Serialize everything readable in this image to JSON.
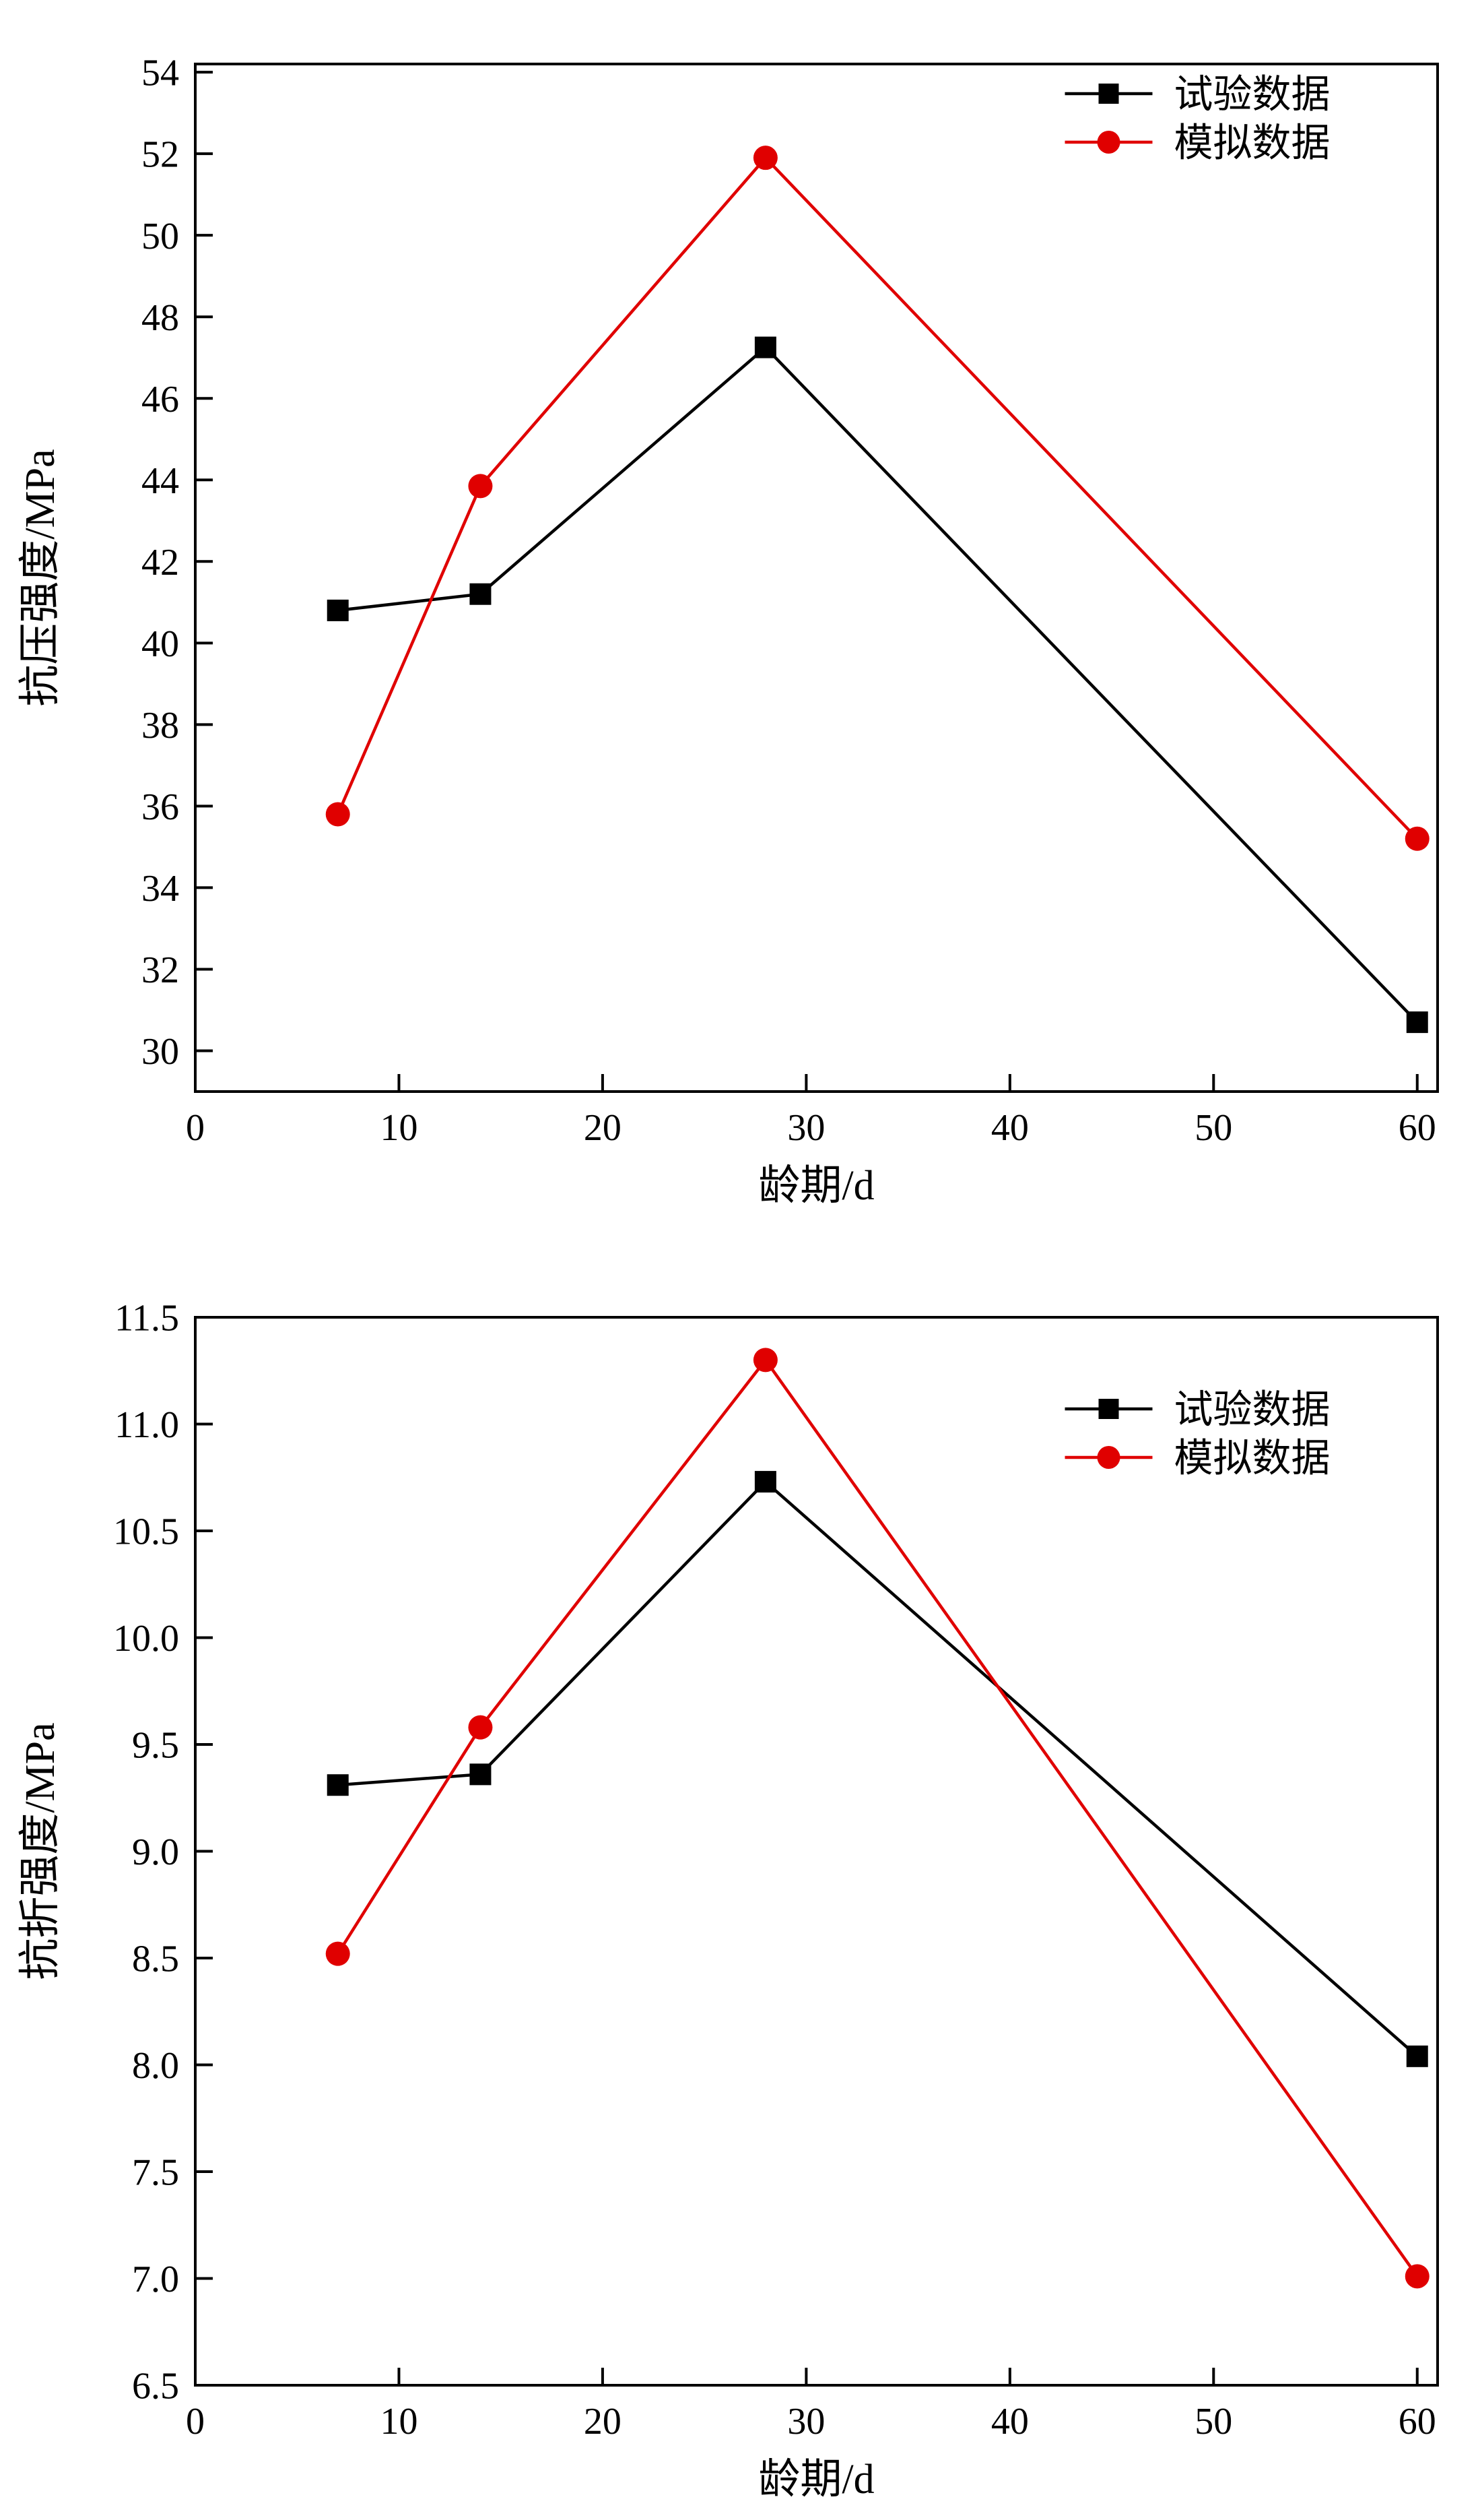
{
  "page": {
    "background": "#ffffff"
  },
  "chart_data": [
    {
      "type": "line",
      "title": "",
      "xlabel": "龄期/d",
      "ylabel": "抗压强度/MPa",
      "xlim": [
        0,
        61
      ],
      "ylim": [
        29,
        54.2
      ],
      "xticks": [
        "0",
        "10",
        "20",
        "30",
        "40",
        "50",
        "60"
      ],
      "yticks": [
        "30",
        "32",
        "34",
        "36",
        "38",
        "40",
        "42",
        "44",
        "46",
        "48",
        "50",
        "52",
        "54"
      ],
      "x": [
        7,
        14,
        28,
        60
      ],
      "series": [
        {
          "name": "试验数据",
          "marker": "square",
          "color": "#000000",
          "values": [
            40.8,
            41.2,
            47.25,
            30.7
          ]
        },
        {
          "name": "模拟数据",
          "marker": "circle",
          "color": "#e00000",
          "values": [
            35.8,
            43.85,
            51.9,
            35.2
          ]
        }
      ],
      "legend": [
        "试验数据",
        "模拟数据"
      ],
      "legend_position": "top-right",
      "grid": false
    },
    {
      "type": "line",
      "title": "",
      "xlabel": "龄期/d",
      "ylabel": "抗折强度/MPa",
      "xlim": [
        0,
        61
      ],
      "ylim": [
        6.5,
        11.5
      ],
      "xticks": [
        "0",
        "10",
        "20",
        "30",
        "40",
        "50",
        "60"
      ],
      "yticks": [
        "6.5",
        "7.0",
        "7.5",
        "8.0",
        "8.5",
        "9.0",
        "9.5",
        "10.0",
        "10.5",
        "11.0",
        "11.5"
      ],
      "x": [
        7,
        14,
        28,
        60
      ],
      "series": [
        {
          "name": "试验数据",
          "marker": "square",
          "color": "#000000",
          "values": [
            9.31,
            9.36,
            10.73,
            8.04
          ]
        },
        {
          "name": "模拟数据",
          "marker": "circle",
          "color": "#e00000",
          "values": [
            8.52,
            9.58,
            11.3,
            7.01
          ]
        }
      ],
      "legend": [
        "试验数据",
        "模拟数据"
      ],
      "legend_position": "top-right",
      "grid": false
    }
  ],
  "colors": {
    "experiment_series": "#000000",
    "simulation_series": "#e00000",
    "axis": "#000000"
  }
}
